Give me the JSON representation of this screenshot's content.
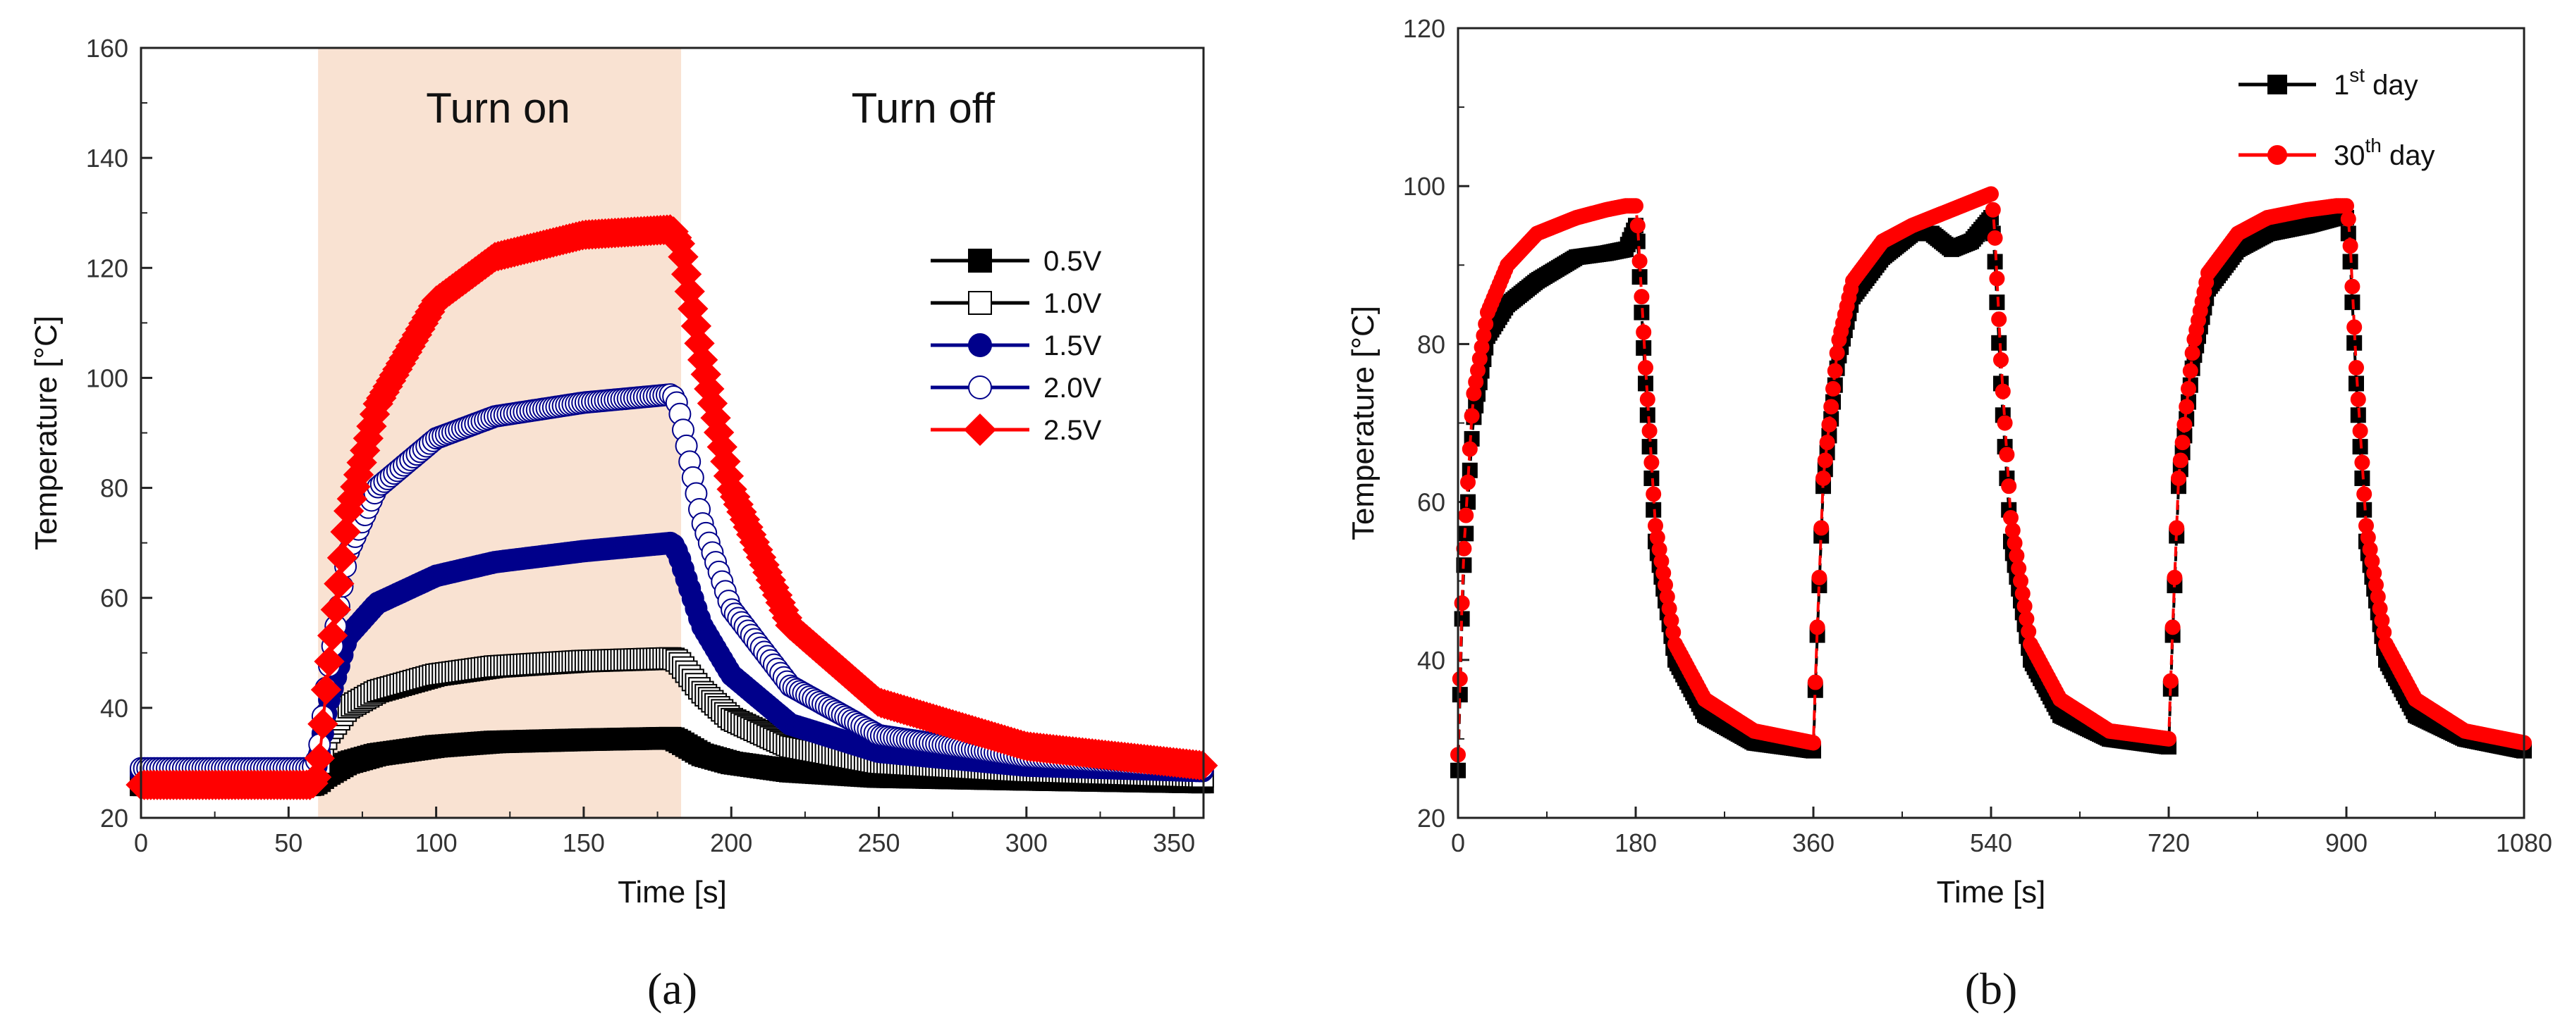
{
  "chart_data": [
    {
      "type": "line",
      "panel_label": "(a)",
      "xlabel": "Time [s]",
      "ylabel": "Temperature [°C]",
      "xlim": [
        0,
        360
      ],
      "ylim": [
        20,
        160
      ],
      "xticks": [
        "0",
        "50",
        "100",
        "150",
        "200",
        "250",
        "300",
        "350"
      ],
      "yticks": [
        "20",
        "40",
        "60",
        "80",
        "100",
        "120",
        "140",
        "160"
      ],
      "shaded_region": [
        60,
        183
      ],
      "annotations": [
        {
          "text": "Turn on",
          "x": 121,
          "y": 149
        },
        {
          "text": "Turn off",
          "x": 265,
          "y": 149
        }
      ],
      "legend": "right",
      "series": [
        {
          "name": "0.5V",
          "color": "#000000",
          "marker": "square",
          "filled": true,
          "base": 26,
          "peak": 34.5,
          "x": [
            0,
            58,
            60,
            62,
            70,
            80,
            100,
            120,
            150,
            180,
            182,
            190,
            200,
            220,
            250,
            300,
            360
          ],
          "y": [
            26,
            26,
            26.5,
            27.5,
            30,
            31.5,
            33,
            33.8,
            34.2,
            34.5,
            34,
            31.5,
            30,
            28.5,
            27.5,
            27,
            26.5
          ]
        },
        {
          "name": "1.0V",
          "color": "#000000",
          "marker": "square",
          "filled": false,
          "base": 27,
          "peak": 49,
          "x": [
            0,
            58,
            60,
            63,
            70,
            80,
            100,
            120,
            150,
            180,
            182,
            190,
            200,
            220,
            250,
            300,
            360
          ],
          "y": [
            27,
            27,
            29,
            35,
            40,
            43,
            46,
            47.5,
            48.5,
            49,
            48.5,
            43,
            38,
            33,
            30,
            28.5,
            27.5
          ]
        },
        {
          "name": "1.5V",
          "color": "#00008B",
          "marker": "circle",
          "filled": true,
          "base": 28,
          "peak": 70,
          "x": [
            0,
            58,
            60,
            63,
            70,
            80,
            100,
            120,
            150,
            180,
            182,
            190,
            200,
            220,
            250,
            300,
            360
          ],
          "y": [
            28,
            28,
            30,
            40,
            53,
            59,
            64,
            66.5,
            68.5,
            70,
            68,
            55,
            46,
            37,
            32,
            29.5,
            28.5
          ]
        },
        {
          "name": "2.0V",
          "color": "#00008B",
          "marker": "circle",
          "filled": false,
          "base": 29,
          "peak": 97,
          "x": [
            0,
            58,
            60,
            63,
            70,
            80,
            100,
            120,
            150,
            180,
            182,
            190,
            200,
            220,
            250,
            300,
            360
          ],
          "y": [
            29,
            29,
            31,
            45,
            68,
            80,
            89,
            93,
            95.5,
            97,
            95,
            74,
            58,
            44,
            35,
            31,
            29
          ]
        },
        {
          "name": "2.5V",
          "color": "#ff0000",
          "marker": "diamond",
          "filled": true,
          "base": 26,
          "peak": 127,
          "x": [
            0,
            58,
            60,
            63,
            70,
            80,
            100,
            120,
            150,
            180,
            183,
            190,
            200,
            220,
            250,
            300,
            360
          ],
          "y": [
            26,
            26,
            28,
            45,
            75,
            95,
            114,
            122,
            126,
            127,
            124,
            104,
            80,
            55,
            41,
            33,
            29.5
          ]
        }
      ]
    },
    {
      "type": "line",
      "panel_label": "(b)",
      "xlabel": "Time [s]",
      "ylabel": "Temperature [°C]",
      "xlim": [
        0,
        1080
      ],
      "ylim": [
        20,
        120
      ],
      "xticks": [
        "0",
        "180",
        "360",
        "540",
        "720",
        "900",
        "1080"
      ],
      "yticks": [
        "20",
        "40",
        "60",
        "80",
        "100",
        "120"
      ],
      "legend": "top-right",
      "series": [
        {
          "name": "1st day",
          "label_base": "1",
          "label_sup": "st",
          "label_tail": " day",
          "color": "#000000",
          "marker": "square",
          "x": [
            0,
            5,
            15,
            30,
            50,
            80,
            120,
            150,
            170,
            180,
            182,
            190,
            200,
            220,
            250,
            300,
            360,
            363,
            370,
            385,
            400,
            430,
            460,
            480,
            500,
            520,
            540,
            543,
            550,
            560,
            580,
            610,
            660,
            720,
            723,
            730,
            745,
            760,
            790,
            820,
            860,
            890,
            900,
            903,
            910,
            920,
            940,
            970,
            1020,
            1080
          ],
          "y": [
            26,
            50,
            70,
            81,
            85,
            88,
            91,
            91.5,
            92,
            95,
            93,
            75,
            55,
            40,
            33,
            29.5,
            28.5,
            40,
            62,
            78,
            86,
            91,
            94,
            94,
            92,
            93,
            96,
            93,
            75,
            55,
            40,
            33,
            30,
            29,
            40,
            62,
            78,
            87,
            92,
            94,
            95,
            96,
            96,
            93,
            75,
            55,
            40,
            33,
            30,
            28.5
          ]
        },
        {
          "name": "30th day",
          "label_base": "30",
          "label_sup": "th",
          "label_tail": " day",
          "color": "#ff0000",
          "marker": "circle",
          "x": [
            0,
            5,
            15,
            30,
            50,
            80,
            120,
            150,
            170,
            180,
            182,
            190,
            200,
            220,
            250,
            300,
            360,
            363,
            370,
            385,
            400,
            430,
            460,
            480,
            500,
            520,
            540,
            543,
            550,
            560,
            580,
            610,
            660,
            720,
            723,
            730,
            745,
            760,
            790,
            820,
            860,
            890,
            900,
            903,
            910,
            920,
            940,
            970,
            1020,
            1080
          ],
          "y": [
            28,
            52,
            73,
            84,
            90,
            94,
            96,
            97,
            97.5,
            97.5,
            95,
            77,
            57,
            42,
            35,
            31,
            29.5,
            41,
            63,
            80,
            88,
            93,
            95,
            96,
            97,
            98,
            99,
            96,
            78,
            58,
            42,
            35,
            31,
            30,
            41,
            63,
            80,
            89,
            94,
            96,
            97,
            97.5,
            97.5,
            95,
            77,
            57,
            42,
            35,
            31,
            29.5
          ]
        }
      ]
    }
  ]
}
